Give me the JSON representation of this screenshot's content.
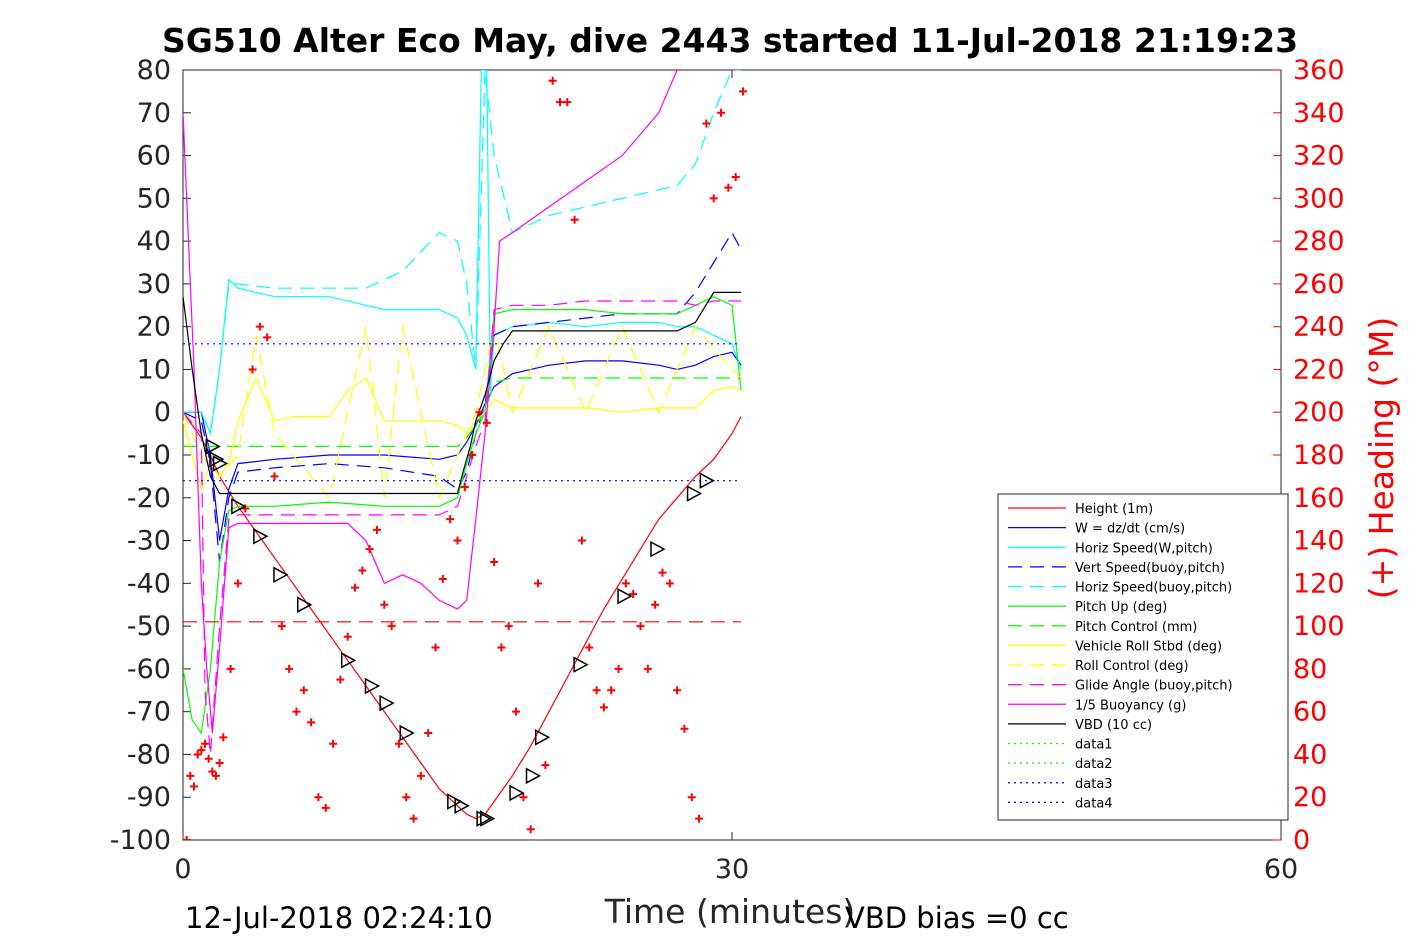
{
  "chart_data": {
    "type": "line",
    "title": "SG510 Alter Eco May, dive 2443 started 11-Jul-2018 21:19:23",
    "xlabel": "Time (minutes)",
    "ylabel": "",
    "y2label": "(+) Heading (°M)",
    "start_time": "12-Jul-2018 02:24:10",
    "vbd_bias": "VBD bias =0 cc",
    "xlim": [
      0,
      60
    ],
    "ylim": [
      -100,
      80
    ],
    "y2lim": [
      0,
      360
    ],
    "x_ticks": [
      0,
      30,
      60
    ],
    "y_ticks": [
      80,
      70,
      60,
      50,
      40,
      30,
      20,
      10,
      0,
      -10,
      -20,
      -30,
      -40,
      -50,
      -60,
      -70,
      -80,
      -90,
      -100
    ],
    "y2_ticks": [
      360,
      340,
      320,
      300,
      280,
      260,
      240,
      220,
      200,
      180,
      160,
      140,
      120,
      100,
      80,
      60,
      40,
      20,
      0
    ],
    "grid": false,
    "legend_position": "bottom-right",
    "series": [
      {
        "name": "Height (1m)",
        "color": "#ff0000",
        "dash": "solid",
        "x": [
          0,
          0.5,
          1,
          1.5,
          2,
          3,
          4,
          5,
          6,
          7,
          8,
          9,
          10,
          11,
          12,
          13,
          14,
          15,
          15.5,
          16,
          16.5,
          17,
          18,
          19,
          20,
          21,
          22,
          23,
          24,
          25,
          26,
          27,
          28,
          29,
          30,
          30.5
        ],
        "y": [
          0,
          -3,
          -6,
          -10,
          -15,
          -22,
          -28,
          -34,
          -40,
          -46,
          -52,
          -58,
          -64,
          -70,
          -76,
          -82,
          -88,
          -92,
          -94,
          -95,
          -94,
          -91,
          -85,
          -78,
          -70,
          -62,
          -54,
          -46,
          -39,
          -32,
          -25,
          -20,
          -15,
          -11,
          -5,
          -1
        ]
      },
      {
        "name": "W = dz/dt (cm/s)",
        "color": "#0000ff",
        "dash": "solid",
        "x": [
          0,
          1,
          1.5,
          2,
          2.5,
          3,
          5,
          8,
          11,
          14,
          15,
          15.5,
          16,
          16.5,
          17,
          18,
          20,
          22,
          24,
          26,
          27,
          28,
          29,
          30,
          30.5
        ],
        "y": [
          0,
          0,
          -10,
          -30,
          -18,
          -12,
          -11,
          -10,
          -10,
          -11,
          -10,
          -7,
          -3,
          2,
          6,
          9,
          11,
          12,
          12,
          11,
          10,
          11,
          13,
          14,
          11
        ]
      },
      {
        "name": "Horiz Speed(W,pitch)",
        "color": "#00ffff",
        "dash": "solid",
        "x": [
          0,
          1,
          1.5,
          2,
          2.5,
          3,
          5,
          8,
          11,
          14,
          15,
          15.5,
          16,
          16.3,
          16.6,
          16.8,
          17,
          18,
          20,
          22,
          24,
          26,
          27,
          28,
          29,
          30,
          30.5
        ],
        "y": [
          0,
          0,
          -5,
          10,
          31,
          29,
          27,
          27,
          24,
          24,
          22,
          18,
          10,
          80,
          80,
          5,
          18,
          20,
          21,
          20,
          21,
          21,
          20,
          20,
          18,
          16,
          10
        ]
      },
      {
        "name": "Vert Speed(buoy,pitch)",
        "color": "#0000ff",
        "dash": "dashed",
        "x": [
          0,
          1,
          1.5,
          2,
          2.5,
          3,
          5,
          8,
          11,
          14,
          15,
          15.5,
          16,
          16.5,
          17,
          18,
          20,
          22,
          24,
          26,
          27,
          28,
          29,
          30,
          30.5
        ],
        "y": [
          0,
          -2,
          -12,
          -35,
          -20,
          -14,
          -13,
          -12,
          -13,
          -15,
          -18,
          -14,
          -5,
          2,
          18,
          20,
          21,
          22,
          23,
          23,
          23,
          28,
          35,
          42,
          38
        ]
      },
      {
        "name": "Horiz Speed(buoy,pitch)",
        "color": "#00ffff",
        "dash": "dashed",
        "x": [
          0,
          1,
          1.5,
          2,
          2.5,
          3,
          5,
          8,
          10,
          12,
          14,
          15,
          15.5,
          16,
          16.5,
          17,
          18,
          20,
          22,
          24,
          26,
          27,
          28,
          29,
          30,
          30.5
        ],
        "y": [
          0,
          0,
          -5,
          10,
          30,
          30,
          29,
          29,
          29,
          33,
          42,
          40,
          30,
          10,
          80,
          60,
          42,
          46,
          48,
          50,
          52,
          53,
          58,
          70,
          80,
          80
        ]
      },
      {
        "name": "Pitch Up (deg)",
        "color": "#00ff00",
        "dash": "solid",
        "x": [
          0,
          0.5,
          1,
          1.5,
          2,
          2.5,
          3,
          5,
          8,
          11,
          14,
          15,
          15.5,
          16,
          16.5,
          17,
          18,
          20,
          22,
          24,
          26,
          27,
          28,
          29,
          30,
          30.5
        ],
        "y": [
          -60,
          -72,
          -75,
          -60,
          -35,
          -23,
          -22,
          -22,
          -21,
          -22,
          -22,
          -20,
          -12,
          -5,
          0,
          23,
          24,
          24,
          24,
          23,
          23,
          23,
          25,
          27,
          25,
          5
        ]
      },
      {
        "name": "Pitch Control (mm)",
        "color": "#00ff00",
        "dash": "dashed",
        "x": [
          0,
          2,
          2.5,
          5,
          8,
          11,
          14,
          15,
          15.5,
          16,
          16.5,
          17,
          18,
          20,
          22,
          24,
          26,
          27,
          28,
          29,
          30,
          30.5
        ],
        "y": [
          -8,
          -8,
          -8,
          -8,
          -8,
          -8,
          -8,
          -8,
          -6,
          -3,
          0,
          7,
          8,
          8,
          8,
          8,
          8,
          8,
          8,
          8,
          8,
          8
        ]
      },
      {
        "name": "Vehicle Roll Stbd (deg)",
        "color": "#ffff00",
        "dash": "solid",
        "x": [
          0,
          0.5,
          1,
          1.5,
          2,
          2.5,
          3,
          4,
          5,
          6,
          8,
          9,
          10,
          11,
          12,
          14,
          15,
          15.5,
          16,
          16.5,
          17,
          18,
          20,
          22,
          24,
          26,
          28,
          29,
          30,
          30.5
        ],
        "y": [
          -2,
          -10,
          -18,
          -12,
          -15,
          -12,
          -2,
          8,
          -2,
          -1,
          -1,
          5,
          8,
          -2,
          -2,
          -2,
          -3,
          -5,
          -2,
          0,
          3,
          1,
          1,
          1,
          0,
          1,
          1,
          5,
          6,
          5
        ]
      },
      {
        "name": "Roll Control (deg)",
        "color": "#ffff00",
        "dash": "dashed",
        "x": [
          0,
          1,
          2,
          3,
          4,
          5,
          8,
          10,
          11,
          12,
          14,
          15,
          16,
          17,
          18,
          20,
          22,
          24,
          26,
          28,
          30,
          30.5
        ],
        "y": [
          0,
          -10,
          -15,
          -10,
          18,
          -5,
          -20,
          20,
          -20,
          20,
          -20,
          -10,
          0,
          20,
          0,
          20,
          0,
          20,
          0,
          20,
          10,
          8
        ]
      },
      {
        "name": "Glide Angle (buoy,pitch)",
        "color": "#ff00ff",
        "dash": "dashed",
        "x": [
          0,
          1,
          1.2,
          1.5,
          2,
          2.5,
          3,
          5,
          8,
          11,
          14,
          15,
          15.5,
          16,
          16.5,
          17,
          18,
          20,
          22,
          24,
          26,
          27,
          28,
          29,
          30,
          30.5
        ],
        "y": [
          0,
          -5,
          -65,
          -80,
          -50,
          -25,
          -24,
          -24,
          -24,
          -24,
          -24,
          -22,
          -15,
          -8,
          -2,
          24,
          25,
          25,
          26,
          26,
          26,
          26,
          25,
          26,
          26,
          26
        ]
      },
      {
        "name": "1/5 Buoyancy (g)",
        "color": "#ff00ff",
        "dash": "solid",
        "x": [
          0,
          0.3,
          0.6,
          1,
          1.3,
          1.6,
          2,
          2.5,
          3,
          5,
          8,
          9,
          10,
          11,
          12,
          13,
          14,
          15,
          15.5,
          16,
          16.5,
          17,
          17.3,
          18,
          20,
          22,
          24,
          26,
          27
        ],
        "y": [
          70,
          40,
          10,
          -40,
          -60,
          -75,
          -55,
          -27,
          -26,
          -26,
          -26,
          -26,
          -30,
          -40,
          -38,
          -40,
          -44,
          -46,
          -44,
          -25,
          -5,
          20,
          40,
          42,
          48,
          54,
          60,
          70,
          80
        ]
      },
      {
        "name": "VBD (10 cc)",
        "color": "#000000",
        "dash": "solid",
        "x": [
          0,
          0.5,
          1,
          1.5,
          2,
          2.5,
          3,
          5,
          8,
          11,
          14,
          15,
          15.3,
          15.7,
          16,
          16.5,
          17,
          17.5,
          18,
          20,
          22,
          24,
          26,
          27,
          28,
          29,
          30,
          30.5
        ],
        "y": [
          27,
          10,
          -5,
          -15,
          -19,
          -19,
          -19,
          -19,
          -19,
          -19,
          -19,
          -19,
          -14,
          -8,
          -2,
          4,
          12,
          16,
          19,
          19,
          19,
          19,
          19,
          19,
          21,
          28,
          28,
          28
        ]
      },
      {
        "name": "data1",
        "color": "#00ff00",
        "dash": "dotted",
        "x": [],
        "y": []
      },
      {
        "name": "data2",
        "color": "#00ff00",
        "dash": "dotted",
        "x": [],
        "y": []
      },
      {
        "name": "data3",
        "color": "#0000ff",
        "dash": "dotted",
        "x": [
          0,
          30.5
        ],
        "y": [
          -16,
          -16
        ]
      },
      {
        "name": "data4",
        "color": "#0000ff",
        "dash": "dotted",
        "x": [
          0,
          30.5
        ],
        "y": [
          16,
          16
        ]
      }
    ],
    "reference_lines": [
      {
        "color": "#ff0000",
        "dash": "dashed",
        "y": -49,
        "x": [
          0,
          30.5
        ]
      }
    ],
    "heading_points": {
      "color": "#ff0000",
      "marker": "+",
      "axis": "right",
      "x": [
        0.2,
        0.4,
        0.6,
        0.8,
        1,
        1.2,
        1.4,
        1.6,
        1.8,
        2,
        2.2,
        2.6,
        3,
        3.4,
        3.8,
        4.2,
        4.6,
        5,
        5.4,
        5.8,
        6.2,
        6.6,
        7,
        7.4,
        7.8,
        8.2,
        8.6,
        9,
        9.4,
        9.8,
        10.2,
        10.6,
        11,
        11.4,
        11.8,
        12.2,
        12.6,
        13,
        13.4,
        13.8,
        14.2,
        14.6,
        15,
        15.4,
        15.8,
        16.2,
        16.6,
        17,
        17.4,
        17.8,
        18.2,
        18.6,
        19,
        19.4,
        19.8,
        20.2,
        20.6,
        21,
        21.4,
        21.8,
        22.2,
        22.6,
        23,
        23.4,
        23.8,
        24.2,
        24.6,
        25,
        25.4,
        25.8,
        26.2,
        26.6,
        27,
        27.4,
        27.8,
        28.2,
        28.6,
        29,
        29.4,
        29.8,
        30.2,
        30.6
      ],
      "y": [
        0,
        30,
        25,
        40,
        42,
        45,
        38,
        32,
        30,
        36,
        48,
        80,
        120,
        155,
        220,
        240,
        235,
        170,
        100,
        80,
        60,
        70,
        55,
        20,
        15,
        45,
        75,
        95,
        118,
        126,
        136,
        145,
        110,
        100,
        45,
        20,
        10,
        30,
        50,
        90,
        122,
        150,
        140,
        165,
        180,
        200,
        195,
        130,
        90,
        100,
        60,
        20,
        5,
        120,
        35,
        355,
        345,
        345,
        290,
        140,
        90,
        70,
        62,
        70,
        80,
        120,
        115,
        100,
        80,
        110,
        125,
        120,
        70,
        52,
        20,
        10,
        335,
        300,
        340,
        305,
        310,
        350
      ]
    },
    "direction_markers": {
      "color": "#000000",
      "marker": "triangle",
      "x": [
        1.6,
        1.8,
        2,
        3,
        4.2,
        5.3,
        6.6,
        9,
        10.3,
        11.1,
        12.2,
        14.8,
        15.2,
        16.4,
        16.6,
        18.2,
        19.1,
        19.6,
        21.7,
        24.1,
        25.9,
        27.9,
        28.6
      ],
      "y": [
        -8,
        -11,
        -12,
        -22,
        -29,
        -38,
        -45,
        -58,
        -64,
        -68,
        -75,
        -91,
        -92,
        -95,
        -95,
        -89,
        -85,
        -76,
        -59,
        -43,
        -32,
        -19,
        -16
      ]
    },
    "legend_entries": [
      "Height (1m)",
      "W = dz/dt (cm/s)",
      "Horiz Speed(W,pitch)",
      "Vert Speed(buoy,pitch)",
      "Horiz Speed(buoy,pitch)",
      "Pitch Up (deg)",
      "Pitch Control (mm)",
      "Vehicle Roll Stbd (deg)",
      "Roll Control (deg)",
      "Glide Angle (buoy,pitch)",
      "1/5 Buoyancy (g)",
      "VBD (10 cc)",
      "data1",
      "data2",
      "data3",
      "data4"
    ]
  }
}
